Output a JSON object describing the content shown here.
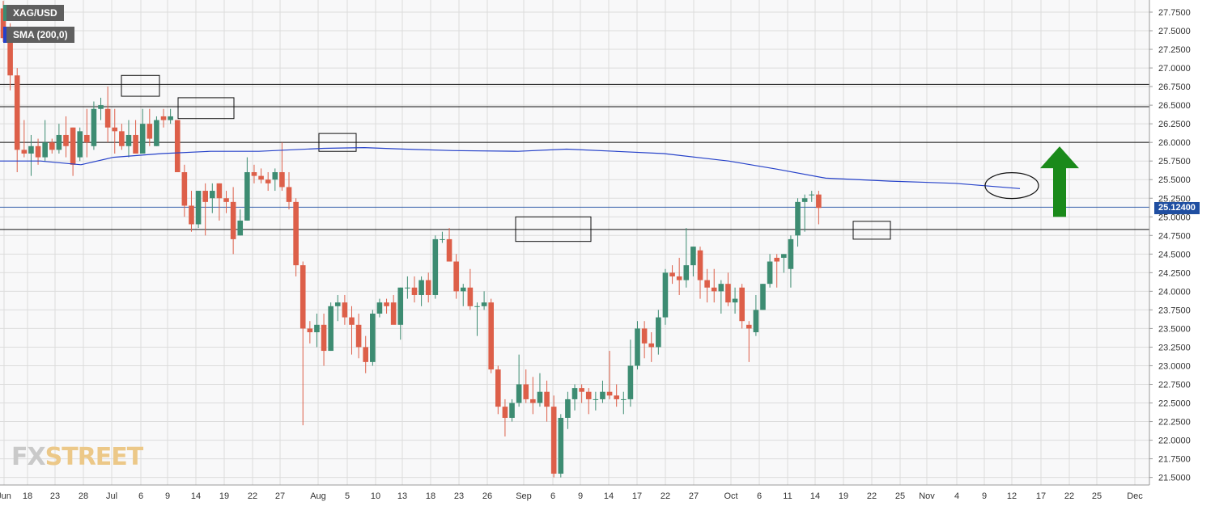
{
  "legend": {
    "symbol": "XAG/USD",
    "indicator": "SMA (200,0)"
  },
  "brand": {
    "prefix": "FX",
    "suffix": "STREET"
  },
  "current_price_label": "25.12400",
  "colors": {
    "bull": "#3d8c72",
    "bear": "#dd5f49",
    "sma": "#2541c9",
    "price_line": "#1f4ea1",
    "arrow": "#1a8a1a",
    "grid": "#dcdcdc",
    "legend_sym": "#3d8c72",
    "legend_sma": "#2541c9"
  },
  "chart_data": {
    "type": "candlestick",
    "ylim": [
      21.4,
      27.9
    ],
    "y_ticks": [
      "27.7500",
      "27.5000",
      "27.2500",
      "27.0000",
      "26.7500",
      "26.5000",
      "26.2500",
      "26.0000",
      "25.7500",
      "25.5000",
      "25.2500",
      "25.0000",
      "24.7500",
      "24.5000",
      "24.2500",
      "24.0000",
      "23.7500",
      "23.5000",
      "23.2500",
      "23.0000",
      "22.7500",
      "22.5000",
      "22.2500",
      "22.0000",
      "21.7500",
      "21.5000"
    ],
    "x_ticks": [
      "Jun",
      "18",
      "23",
      "28",
      "Jul",
      "6",
      "9",
      "14",
      "19",
      "22",
      "27",
      "Aug",
      "5",
      "10",
      "13",
      "18",
      "23",
      "26",
      "Sep",
      "6",
      "9",
      "14",
      "17",
      "22",
      "27",
      "Oct",
      "6",
      "11",
      "14",
      "19",
      "22",
      "25",
      "Nov",
      "4",
      "9",
      "12",
      "17",
      "22",
      "25",
      "Dec"
    ],
    "candles": [
      {
        "o": 27.8,
        "h": 27.9,
        "l": 27.35,
        "c": 27.4
      },
      {
        "o": 27.35,
        "h": 27.6,
        "l": 26.7,
        "c": 26.9
      },
      {
        "o": 26.9,
        "h": 27.0,
        "l": 25.6,
        "c": 25.9
      },
      {
        "o": 25.9,
        "h": 26.3,
        "l": 25.8,
        "c": 25.85
      },
      {
        "o": 25.85,
        "h": 26.1,
        "l": 25.55,
        "c": 25.95
      },
      {
        "o": 25.95,
        "h": 26.05,
        "l": 25.7,
        "c": 25.8
      },
      {
        "o": 25.8,
        "h": 26.3,
        "l": 25.75,
        "c": 26.0
      },
      {
        "o": 26.0,
        "h": 26.05,
        "l": 25.85,
        "c": 25.9
      },
      {
        "o": 25.9,
        "h": 26.25,
        "l": 25.85,
        "c": 26.1
      },
      {
        "o": 26.1,
        "h": 26.35,
        "l": 25.8,
        "c": 25.95
      },
      {
        "o": 26.2,
        "h": 26.2,
        "l": 25.55,
        "c": 25.7
      },
      {
        "o": 25.8,
        "h": 26.2,
        "l": 25.75,
        "c": 26.15
      },
      {
        "o": 26.1,
        "h": 26.45,
        "l": 25.8,
        "c": 26.0
      },
      {
        "o": 25.95,
        "h": 26.55,
        "l": 25.9,
        "c": 26.45
      },
      {
        "o": 26.45,
        "h": 26.6,
        "l": 26.3,
        "c": 26.5
      },
      {
        "o": 26.45,
        "h": 26.75,
        "l": 26.0,
        "c": 26.2
      },
      {
        "o": 26.2,
        "h": 26.45,
        "l": 25.85,
        "c": 26.15
      },
      {
        "o": 26.15,
        "h": 26.25,
        "l": 25.9,
        "c": 25.95
      },
      {
        "o": 25.95,
        "h": 26.3,
        "l": 25.8,
        "c": 26.1
      },
      {
        "o": 26.1,
        "h": 26.3,
        "l": 25.9,
        "c": 25.85
      },
      {
        "o": 25.85,
        "h": 26.45,
        "l": 25.85,
        "c": 26.25
      },
      {
        "o": 26.25,
        "h": 26.45,
        "l": 25.95,
        "c": 26.05
      },
      {
        "o": 25.95,
        "h": 26.35,
        "l": 25.95,
        "c": 26.3
      },
      {
        "o": 26.35,
        "h": 26.45,
        "l": 26.2,
        "c": 26.3
      },
      {
        "o": 26.3,
        "h": 26.45,
        "l": 26.25,
        "c": 26.35
      },
      {
        "o": 26.3,
        "h": 26.3,
        "l": 25.6,
        "c": 25.6
      },
      {
        "o": 25.6,
        "h": 25.7,
        "l": 25.0,
        "c": 25.15
      },
      {
        "o": 25.15,
        "h": 25.35,
        "l": 24.8,
        "c": 24.9
      },
      {
        "o": 24.9,
        "h": 25.35,
        "l": 24.85,
        "c": 25.35
      },
      {
        "o": 25.35,
        "h": 25.45,
        "l": 24.75,
        "c": 25.2
      },
      {
        "o": 25.25,
        "h": 25.45,
        "l": 25.05,
        "c": 25.35
      },
      {
        "o": 25.45,
        "h": 25.45,
        "l": 24.95,
        "c": 25.25
      },
      {
        "o": 25.25,
        "h": 25.35,
        "l": 25.05,
        "c": 25.2
      },
      {
        "o": 25.2,
        "h": 25.4,
        "l": 24.5,
        "c": 24.7
      },
      {
        "o": 24.75,
        "h": 25.1,
        "l": 24.75,
        "c": 24.95
      },
      {
        "o": 24.95,
        "h": 25.8,
        "l": 24.95,
        "c": 25.6
      },
      {
        "o": 25.6,
        "h": 25.7,
        "l": 25.45,
        "c": 25.55
      },
      {
        "o": 25.55,
        "h": 25.65,
        "l": 25.45,
        "c": 25.5
      },
      {
        "o": 25.5,
        "h": 25.6,
        "l": 25.35,
        "c": 25.45
      },
      {
        "o": 25.5,
        "h": 25.65,
        "l": 25.35,
        "c": 25.6
      },
      {
        "o": 25.6,
        "h": 26.0,
        "l": 25.35,
        "c": 25.4
      },
      {
        "o": 25.4,
        "h": 25.6,
        "l": 25.1,
        "c": 25.2
      },
      {
        "o": 25.2,
        "h": 25.25,
        "l": 24.2,
        "c": 24.35
      },
      {
        "o": 24.35,
        "h": 24.4,
        "l": 22.2,
        "c": 23.5
      },
      {
        "o": 23.5,
        "h": 23.6,
        "l": 23.3,
        "c": 23.45
      },
      {
        "o": 23.45,
        "h": 23.7,
        "l": 23.25,
        "c": 23.55
      },
      {
        "o": 23.55,
        "h": 23.7,
        "l": 23.0,
        "c": 23.2
      },
      {
        "o": 23.2,
        "h": 23.85,
        "l": 23.2,
        "c": 23.8
      },
      {
        "o": 23.8,
        "h": 23.95,
        "l": 23.6,
        "c": 23.85
      },
      {
        "o": 23.85,
        "h": 23.95,
        "l": 23.55,
        "c": 23.65
      },
      {
        "o": 23.65,
        "h": 23.8,
        "l": 23.15,
        "c": 23.55
      },
      {
        "o": 23.55,
        "h": 23.7,
        "l": 23.1,
        "c": 23.25
      },
      {
        "o": 23.25,
        "h": 23.4,
        "l": 22.9,
        "c": 23.05
      },
      {
        "o": 23.05,
        "h": 23.75,
        "l": 23.0,
        "c": 23.7
      },
      {
        "o": 23.7,
        "h": 23.9,
        "l": 23.65,
        "c": 23.85
      },
      {
        "o": 23.85,
        "h": 23.9,
        "l": 23.7,
        "c": 23.8
      },
      {
        "o": 23.85,
        "h": 23.95,
        "l": 23.6,
        "c": 23.55
      },
      {
        "o": 23.55,
        "h": 24.05,
        "l": 23.35,
        "c": 24.05
      },
      {
        "o": 24.05,
        "h": 24.2,
        "l": 23.9,
        "c": 24.05
      },
      {
        "o": 24.05,
        "h": 24.2,
        "l": 23.85,
        "c": 23.95
      },
      {
        "o": 23.95,
        "h": 24.2,
        "l": 23.8,
        "c": 24.15
      },
      {
        "o": 24.15,
        "h": 24.25,
        "l": 23.85,
        "c": 23.95
      },
      {
        "o": 23.95,
        "h": 24.75,
        "l": 23.9,
        "c": 24.7
      },
      {
        "o": 24.7,
        "h": 24.8,
        "l": 24.65,
        "c": 24.7
      },
      {
        "o": 24.7,
        "h": 24.85,
        "l": 24.4,
        "c": 24.4
      },
      {
        "o": 24.4,
        "h": 24.5,
        "l": 23.9,
        "c": 24.0
      },
      {
        "o": 24.0,
        "h": 24.1,
        "l": 23.8,
        "c": 24.05
      },
      {
        "o": 24.05,
        "h": 24.3,
        "l": 23.75,
        "c": 23.8
      },
      {
        "o": 23.8,
        "h": 23.85,
        "l": 23.4,
        "c": 23.8
      },
      {
        "o": 23.8,
        "h": 24.0,
        "l": 23.75,
        "c": 23.85
      },
      {
        "o": 23.85,
        "h": 23.9,
        "l": 22.9,
        "c": 22.95
      },
      {
        "o": 22.95,
        "h": 23.0,
        "l": 22.35,
        "c": 22.45
      },
      {
        "o": 22.45,
        "h": 22.55,
        "l": 22.05,
        "c": 22.3
      },
      {
        "o": 22.3,
        "h": 22.55,
        "l": 22.25,
        "c": 22.5
      },
      {
        "o": 22.5,
        "h": 23.15,
        "l": 22.45,
        "c": 22.75
      },
      {
        "o": 22.75,
        "h": 22.95,
        "l": 22.5,
        "c": 22.55
      },
      {
        "o": 22.55,
        "h": 22.85,
        "l": 22.35,
        "c": 22.5
      },
      {
        "o": 22.5,
        "h": 22.9,
        "l": 22.45,
        "c": 22.65
      },
      {
        "o": 22.65,
        "h": 22.8,
        "l": 22.25,
        "c": 22.45
      },
      {
        "o": 22.45,
        "h": 22.6,
        "l": 21.5,
        "c": 21.55
      },
      {
        "o": 21.55,
        "h": 22.35,
        "l": 21.5,
        "c": 22.3
      },
      {
        "o": 22.3,
        "h": 22.65,
        "l": 22.15,
        "c": 22.55
      },
      {
        "o": 22.55,
        "h": 22.75,
        "l": 22.4,
        "c": 22.7
      },
      {
        "o": 22.7,
        "h": 22.75,
        "l": 22.5,
        "c": 22.65
      },
      {
        "o": 22.65,
        "h": 22.7,
        "l": 22.35,
        "c": 22.55
      },
      {
        "o": 22.55,
        "h": 22.65,
        "l": 22.4,
        "c": 22.55
      },
      {
        "o": 22.55,
        "h": 22.8,
        "l": 22.5,
        "c": 22.65
      },
      {
        "o": 22.65,
        "h": 23.2,
        "l": 22.55,
        "c": 22.6
      },
      {
        "o": 22.6,
        "h": 22.75,
        "l": 22.45,
        "c": 22.55
      },
      {
        "o": 22.55,
        "h": 22.65,
        "l": 22.35,
        "c": 22.55
      },
      {
        "o": 22.55,
        "h": 23.35,
        "l": 22.45,
        "c": 23.0
      },
      {
        "o": 23.0,
        "h": 23.6,
        "l": 22.95,
        "c": 23.5
      },
      {
        "o": 23.5,
        "h": 23.6,
        "l": 23.1,
        "c": 23.3
      },
      {
        "o": 23.3,
        "h": 23.45,
        "l": 23.05,
        "c": 23.25
      },
      {
        "o": 23.25,
        "h": 23.75,
        "l": 23.15,
        "c": 23.65
      },
      {
        "o": 23.65,
        "h": 24.3,
        "l": 23.55,
        "c": 24.25
      },
      {
        "o": 24.25,
        "h": 24.35,
        "l": 24.1,
        "c": 24.2
      },
      {
        "o": 24.2,
        "h": 24.45,
        "l": 23.95,
        "c": 24.15
      },
      {
        "o": 24.15,
        "h": 24.85,
        "l": 24.05,
        "c": 24.35
      },
      {
        "o": 24.35,
        "h": 24.6,
        "l": 24.2,
        "c": 24.6
      },
      {
        "o": 24.55,
        "h": 24.6,
        "l": 23.9,
        "c": 24.15
      },
      {
        "o": 24.15,
        "h": 24.3,
        "l": 23.85,
        "c": 24.05
      },
      {
        "o": 24.05,
        "h": 24.3,
        "l": 23.85,
        "c": 24.0
      },
      {
        "o": 24.0,
        "h": 24.15,
        "l": 23.7,
        "c": 24.1
      },
      {
        "o": 24.1,
        "h": 24.25,
        "l": 23.8,
        "c": 23.85
      },
      {
        "o": 23.85,
        "h": 24.05,
        "l": 23.7,
        "c": 23.9
      },
      {
        "o": 24.05,
        "h": 24.1,
        "l": 23.5,
        "c": 23.6
      },
      {
        "o": 23.55,
        "h": 23.6,
        "l": 23.05,
        "c": 23.5
      },
      {
        "o": 23.45,
        "h": 23.95,
        "l": 23.4,
        "c": 23.75
      },
      {
        "o": 23.75,
        "h": 24.1,
        "l": 23.75,
        "c": 24.1
      },
      {
        "o": 24.1,
        "h": 24.5,
        "l": 24.05,
        "c": 24.4
      },
      {
        "o": 24.45,
        "h": 24.5,
        "l": 24.05,
        "c": 24.4
      },
      {
        "o": 24.45,
        "h": 24.5,
        "l": 24.25,
        "c": 24.5
      },
      {
        "o": 24.3,
        "h": 24.75,
        "l": 24.05,
        "c": 24.7
      },
      {
        "o": 24.75,
        "h": 25.25,
        "l": 24.6,
        "c": 25.2
      },
      {
        "o": 25.2,
        "h": 25.3,
        "l": 24.8,
        "c": 25.25
      },
      {
        "o": 25.3,
        "h": 25.35,
        "l": 25.2,
        "c": 25.3
      },
      {
        "o": 25.3,
        "h": 25.35,
        "l": 24.9,
        "c": 25.12
      }
    ],
    "sma": [
      [
        0,
        25.75
      ],
      [
        50,
        25.75
      ],
      [
        100,
        25.7
      ],
      [
        140,
        25.8
      ],
      [
        200,
        25.85
      ],
      [
        260,
        25.88
      ],
      [
        320,
        25.88
      ],
      [
        400,
        25.92
      ],
      [
        450,
        25.93
      ],
      [
        500,
        25.91
      ],
      [
        560,
        25.89
      ],
      [
        640,
        25.88
      ],
      [
        700,
        25.91
      ],
      [
        760,
        25.88
      ],
      [
        820,
        25.85
      ],
      [
        900,
        25.75
      ],
      [
        960,
        25.64
      ],
      [
        1020,
        25.52
      ],
      [
        1100,
        25.48
      ],
      [
        1180,
        25.45
      ],
      [
        1260,
        25.38
      ]
    ],
    "horizontal_levels": [
      26.78,
      26.48,
      26.0,
      25.13,
      24.83
    ],
    "boxes": [
      [
        150,
        197,
        26.9,
        26.62
      ],
      [
        220,
        289,
        26.6,
        26.32
      ],
      [
        394,
        440,
        26.12,
        25.88
      ],
      [
        637,
        730,
        25.0,
        24.67
      ],
      [
        1054,
        1100,
        24.94,
        24.7
      ]
    ],
    "ellipse": [
      1250,
      25.42,
      33,
      16
    ],
    "arrow": [
      1309,
      26.0,
      25.0
    ]
  }
}
